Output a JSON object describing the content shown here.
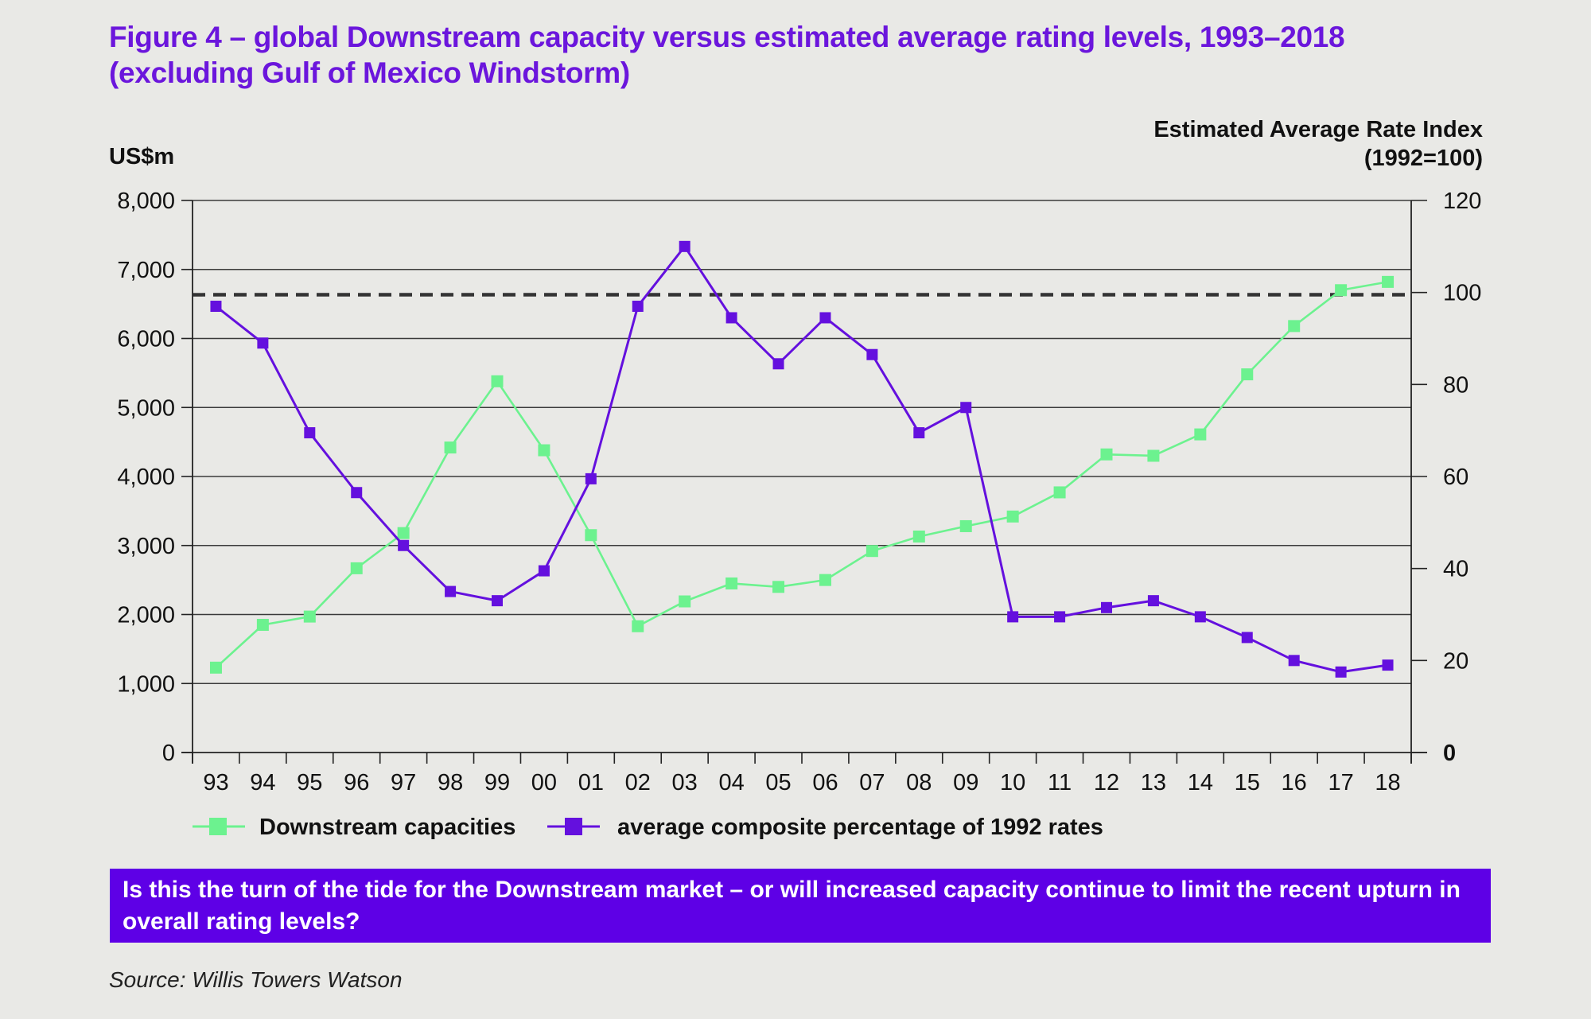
{
  "title": "Figure 4 – global Downstream capacity versus estimated average rating levels, 1993–2018 (excluding Gulf of Mexico Windstorm)",
  "callout": "Is this the turn of the tide for the Downstream market – or will increased capacity continue to limit the recent upturn in overall rating levels?",
  "source": "Source: Willis Towers Watson",
  "colors": {
    "capacity": "#6cf28f",
    "rate": "#6410de",
    "title": "#6b16dc",
    "callout_bg": "#5e00e6",
    "background": "#e9e9e6",
    "reference_line": "#333333"
  },
  "chart_data": {
    "type": "line",
    "categories": [
      "93",
      "94",
      "95",
      "96",
      "97",
      "98",
      "99",
      "00",
      "01",
      "02",
      "03",
      "04",
      "05",
      "06",
      "07",
      "08",
      "09",
      "10",
      "11",
      "12",
      "13",
      "14",
      "15",
      "16",
      "17",
      "18"
    ],
    "left_axis": {
      "title": "US$m",
      "range": [
        0,
        8000
      ],
      "ticks": [
        0,
        1000,
        2000,
        3000,
        4000,
        5000,
        6000,
        7000,
        8000
      ],
      "tick_labels": [
        "0",
        "1,000",
        "2,000",
        "3,000",
        "4,000",
        "5,000",
        "6,000",
        "7,000",
        "8,000"
      ]
    },
    "right_axis": {
      "title_line1": "Estimated Average Rate Index",
      "title_line2": "(1992=100)",
      "range": [
        0,
        120
      ],
      "ticks": [
        0,
        20,
        40,
        60,
        80,
        100,
        120
      ],
      "tick_labels": [
        "0",
        "20",
        "40",
        "60",
        "80",
        "100",
        "120"
      ]
    },
    "series": [
      {
        "name": "Downstream capacities",
        "axis": "left",
        "values": [
          1230,
          1850,
          1970,
          2670,
          3180,
          4420,
          5380,
          4380,
          3150,
          1830,
          2190,
          2450,
          2400,
          2500,
          2920,
          3130,
          3280,
          3420,
          3770,
          4320,
          4300,
          4610,
          5480,
          6180,
          6700,
          6820
        ]
      },
      {
        "name": "average composite percentage of 1992 rates",
        "axis": "right",
        "values": [
          97,
          89,
          69.5,
          56.5,
          45,
          35,
          33,
          39.5,
          59.5,
          97,
          110,
          94.5,
          84.5,
          94.5,
          86.5,
          69.5,
          75,
          29.5,
          29.5,
          31.5,
          33,
          29.5,
          25,
          20,
          17.5,
          19
        ]
      }
    ],
    "reference_line": {
      "axis": "right",
      "value": 99.5,
      "style": "dashed"
    },
    "grid": true,
    "legend_position": "bottom-left"
  }
}
